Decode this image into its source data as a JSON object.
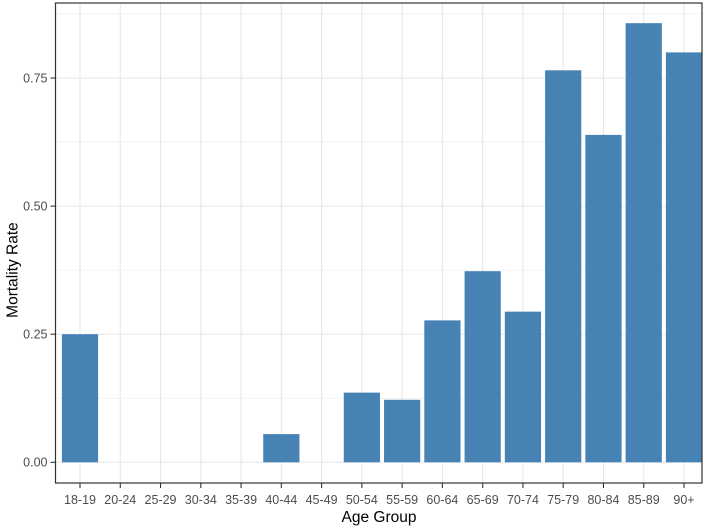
{
  "chart_data": {
    "type": "bar",
    "title": "",
    "xlabel": "Age Group",
    "ylabel": "Mortality Rate",
    "categories": [
      "18-19",
      "20-24",
      "25-29",
      "30-34",
      "35-39",
      "40-44",
      "45-49",
      "50-54",
      "55-59",
      "60-64",
      "65-69",
      "70-74",
      "75-79",
      "80-84",
      "85-89",
      "90+"
    ],
    "values": [
      0.25,
      0,
      0,
      0,
      0,
      0.055,
      0,
      0.136,
      0.122,
      0.277,
      0.373,
      0.294,
      0.765,
      0.639,
      0.857,
      0.8
    ],
    "y_ticks": [
      0.0,
      0.25,
      0.5,
      0.75
    ],
    "y_tick_labels": [
      "0.00",
      "0.25",
      "0.50",
      "0.75"
    ],
    "y_minor_ticks": [
      0.125,
      0.375,
      0.625,
      0.875
    ],
    "ylim": [
      -0.043,
      0.897
    ],
    "grid": "major-and-minor",
    "legend": "none"
  },
  "colors": {
    "bar_fill": "#4682B4",
    "panel_background": "#FFFFFF",
    "panel_border": "#333333",
    "grid_major": "#E5E5E5",
    "grid_minor": "#F2F2F2",
    "tick_mark": "#333333",
    "tick_label": "#4D4D4D",
    "axis_title": "#000000"
  }
}
